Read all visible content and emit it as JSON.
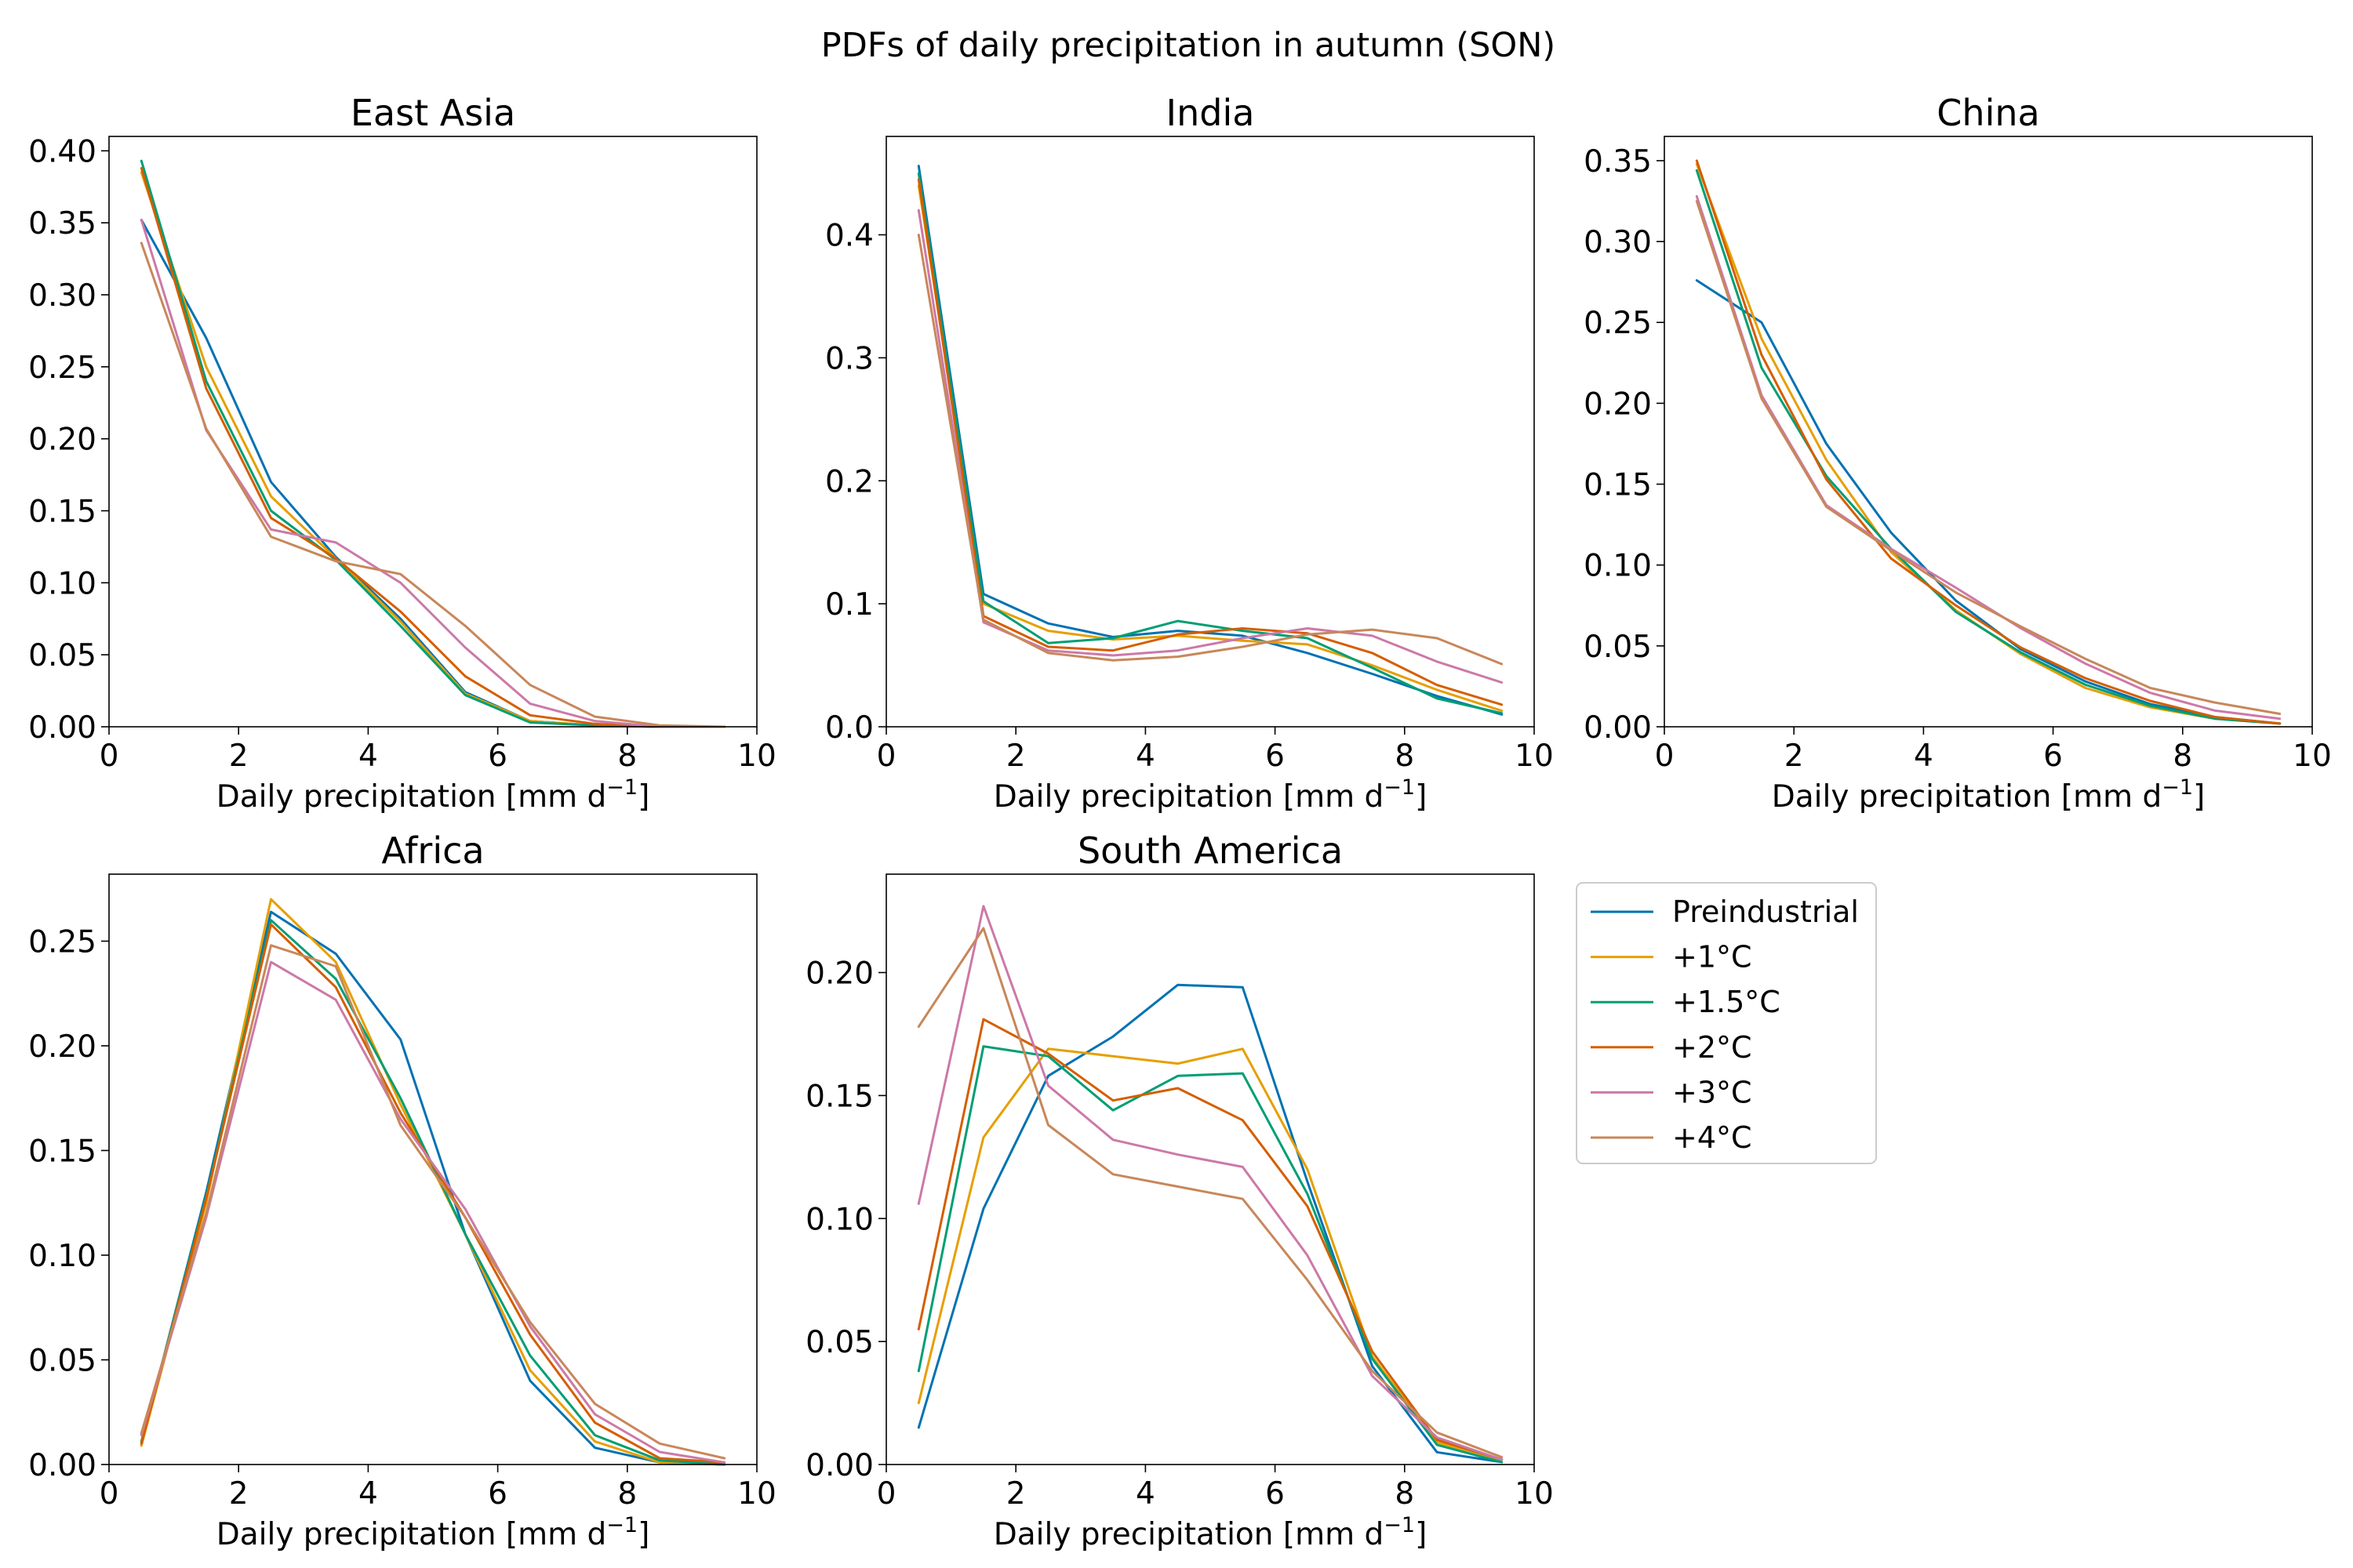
{
  "figure_title": "PDFs of daily precipitation in autumn (SON)",
  "colors": {
    "Preindustrial": "#0072b2",
    "+1°C": "#e69f00",
    "+1.5°C": "#009e73",
    "+2°C": "#d55e00",
    "+3°C": "#cc79a7",
    "+4°C": "#c8875a"
  },
  "legend": {
    "placement": "right of South America panel",
    "entries": [
      "Preindustrial",
      "+1°C",
      "+1.5°C",
      "+2°C",
      "+3°C",
      "+4°C"
    ]
  },
  "chart_data": [
    {
      "type": "line",
      "title": "East Asia",
      "xlabel": "Daily precipitation [mm d",
      "xlabel_sup": "−1",
      "xlabel_end": "]",
      "xlim": [
        0,
        10
      ],
      "ylim": [
        0,
        0.41
      ],
      "xticks": [
        0,
        2,
        4,
        6,
        8,
        10
      ],
      "yticks": [
        0,
        0.05,
        0.1,
        0.15,
        0.2,
        0.25,
        0.3,
        0.35,
        0.4
      ],
      "ytick_labels": [
        "0.00",
        "0.05",
        "0.10",
        "0.15",
        "0.20",
        "0.25",
        "0.30",
        "0.35",
        "0.40"
      ],
      "x": [
        0.5,
        1.5,
        2.5,
        3.5,
        4.5,
        5.5,
        6.5,
        7.5,
        8.5,
        9.5
      ],
      "series": [
        {
          "name": "Preindustrial",
          "values": [
            0.352,
            0.27,
            0.17,
            0.118,
            0.075,
            0.024,
            0.004,
            0.001,
            0.0,
            0.0
          ]
        },
        {
          "name": "+1°C",
          "values": [
            0.385,
            0.25,
            0.16,
            0.117,
            0.073,
            0.023,
            0.004,
            0.001,
            0.0,
            0.0
          ]
        },
        {
          "name": "+1.5°C",
          "values": [
            0.393,
            0.24,
            0.15,
            0.116,
            0.07,
            0.022,
            0.003,
            0.001,
            0.0,
            0.0
          ]
        },
        {
          "name": "+2°C",
          "values": [
            0.388,
            0.235,
            0.145,
            0.117,
            0.08,
            0.035,
            0.008,
            0.002,
            0.0,
            0.0
          ]
        },
        {
          "name": "+3°C",
          "values": [
            0.352,
            0.206,
            0.137,
            0.128,
            0.1,
            0.055,
            0.016,
            0.004,
            0.0,
            0.0
          ]
        },
        {
          "name": "+4°C",
          "values": [
            0.336,
            0.207,
            0.132,
            0.115,
            0.106,
            0.07,
            0.029,
            0.007,
            0.001,
            0.0
          ]
        }
      ]
    },
    {
      "type": "line",
      "title": "India",
      "xlabel": "Daily precipitation [mm d",
      "xlabel_sup": "−1",
      "xlabel_end": "]",
      "xlim": [
        0,
        10
      ],
      "ylim": [
        0,
        0.48
      ],
      "xticks": [
        0,
        2,
        4,
        6,
        8,
        10
      ],
      "yticks": [
        0,
        0.1,
        0.2,
        0.3,
        0.4
      ],
      "ytick_labels": [
        "0.0",
        "0.1",
        "0.2",
        "0.3",
        "0.4"
      ],
      "x": [
        0.5,
        1.5,
        2.5,
        3.5,
        4.5,
        5.5,
        6.5,
        7.5,
        8.5,
        9.5
      ],
      "series": [
        {
          "name": "Preindustrial",
          "values": [
            0.456,
            0.108,
            0.084,
            0.073,
            0.078,
            0.074,
            0.06,
            0.043,
            0.025,
            0.01
          ]
        },
        {
          "name": "+1°C",
          "values": [
            0.44,
            0.1,
            0.078,
            0.071,
            0.074,
            0.07,
            0.067,
            0.05,
            0.03,
            0.013
          ]
        },
        {
          "name": "+1.5°C",
          "values": [
            0.45,
            0.102,
            0.068,
            0.072,
            0.086,
            0.078,
            0.072,
            0.048,
            0.023,
            0.011
          ]
        },
        {
          "name": "+2°C",
          "values": [
            0.445,
            0.09,
            0.065,
            0.062,
            0.075,
            0.08,
            0.076,
            0.06,
            0.034,
            0.018
          ]
        },
        {
          "name": "+3°C",
          "values": [
            0.42,
            0.085,
            0.062,
            0.058,
            0.062,
            0.072,
            0.08,
            0.074,
            0.053,
            0.036
          ]
        },
        {
          "name": "+4°C",
          "values": [
            0.4,
            0.087,
            0.06,
            0.054,
            0.057,
            0.065,
            0.075,
            0.079,
            0.072,
            0.051
          ]
        }
      ]
    },
    {
      "type": "line",
      "title": "China",
      "xlabel": "Daily precipitation [mm d",
      "xlabel_sup": "−1",
      "xlabel_end": "]",
      "xlim": [
        0,
        10
      ],
      "ylim": [
        0,
        0.365
      ],
      "xticks": [
        0,
        2,
        4,
        6,
        8,
        10
      ],
      "yticks": [
        0,
        0.05,
        0.1,
        0.15,
        0.2,
        0.25,
        0.3,
        0.35
      ],
      "ytick_labels": [
        "0.00",
        "0.05",
        "0.10",
        "0.15",
        "0.20",
        "0.25",
        "0.30",
        "0.35"
      ],
      "x": [
        0.5,
        1.5,
        2.5,
        3.5,
        4.5,
        5.5,
        6.5,
        7.5,
        8.5,
        9.5
      ],
      "series": [
        {
          "name": "Preindustrial",
          "values": [
            0.276,
            0.25,
            0.175,
            0.12,
            0.078,
            0.048,
            0.028,
            0.014,
            0.006,
            0.002
          ]
        },
        {
          "name": "+1°C",
          "values": [
            0.348,
            0.24,
            0.165,
            0.108,
            0.072,
            0.045,
            0.024,
            0.012,
            0.005,
            0.002
          ]
        },
        {
          "name": "+1.5°C",
          "values": [
            0.344,
            0.222,
            0.155,
            0.11,
            0.071,
            0.046,
            0.026,
            0.013,
            0.005,
            0.002
          ]
        },
        {
          "name": "+2°C",
          "values": [
            0.35,
            0.23,
            0.153,
            0.104,
            0.075,
            0.049,
            0.03,
            0.016,
            0.006,
            0.002
          ]
        },
        {
          "name": "+3°C",
          "values": [
            0.328,
            0.205,
            0.137,
            0.11,
            0.086,
            0.061,
            0.039,
            0.021,
            0.01,
            0.005
          ]
        },
        {
          "name": "+4°C",
          "values": [
            0.325,
            0.203,
            0.136,
            0.109,
            0.083,
            0.062,
            0.042,
            0.024,
            0.015,
            0.008
          ]
        }
      ]
    },
    {
      "type": "line",
      "title": "Africa",
      "xlabel": "Daily precipitation [mm d",
      "xlabel_sup": "−1",
      "xlabel_end": "]",
      "xlim": [
        0,
        10
      ],
      "ylim": [
        0,
        0.282
      ],
      "xticks": [
        0,
        2,
        4,
        6,
        8,
        10
      ],
      "yticks": [
        0,
        0.05,
        0.1,
        0.15,
        0.2,
        0.25
      ],
      "ytick_labels": [
        "0.00",
        "0.05",
        "0.10",
        "0.15",
        "0.20",
        "0.25"
      ],
      "x": [
        0.5,
        1.5,
        2.5,
        3.5,
        4.5,
        5.5,
        6.5,
        7.5,
        8.5,
        9.5
      ],
      "series": [
        {
          "name": "Preindustrial",
          "values": [
            0.01,
            0.13,
            0.264,
            0.244,
            0.203,
            0.11,
            0.04,
            0.008,
            0.001,
            0.0
          ]
        },
        {
          "name": "+1°C",
          "values": [
            0.009,
            0.125,
            0.27,
            0.24,
            0.172,
            0.11,
            0.045,
            0.011,
            0.001,
            0.0
          ]
        },
        {
          "name": "+1.5°C",
          "values": [
            0.011,
            0.128,
            0.26,
            0.232,
            0.175,
            0.11,
            0.052,
            0.014,
            0.002,
            0.0
          ]
        },
        {
          "name": "+2°C",
          "values": [
            0.01,
            0.127,
            0.258,
            0.228,
            0.168,
            0.118,
            0.062,
            0.02,
            0.003,
            0.001
          ]
        },
        {
          "name": "+3°C",
          "values": [
            0.014,
            0.118,
            0.24,
            0.222,
            0.165,
            0.122,
            0.066,
            0.024,
            0.006,
            0.001
          ]
        },
        {
          "name": "+4°C",
          "values": [
            0.015,
            0.12,
            0.248,
            0.238,
            0.162,
            0.118,
            0.068,
            0.029,
            0.01,
            0.003
          ]
        }
      ]
    },
    {
      "type": "line",
      "title": "South America",
      "xlabel": "Daily precipitation [mm d",
      "xlabel_sup": "−1",
      "xlabel_end": "]",
      "xlim": [
        0,
        10
      ],
      "ylim": [
        0,
        0.24
      ],
      "xticks": [
        0,
        2,
        4,
        6,
        8,
        10
      ],
      "yticks": [
        0,
        0.05,
        0.1,
        0.15,
        0.2
      ],
      "ytick_labels": [
        "0.00",
        "0.05",
        "0.10",
        "0.15",
        "0.20"
      ],
      "x": [
        0.5,
        1.5,
        2.5,
        3.5,
        4.5,
        5.5,
        6.5,
        7.5,
        8.5,
        9.5
      ],
      "series": [
        {
          "name": "Preindustrial",
          "values": [
            0.015,
            0.104,
            0.158,
            0.174,
            0.195,
            0.194,
            0.115,
            0.04,
            0.005,
            0.001
          ]
        },
        {
          "name": "+1°C",
          "values": [
            0.025,
            0.133,
            0.169,
            0.166,
            0.163,
            0.169,
            0.12,
            0.044,
            0.009,
            0.002
          ]
        },
        {
          "name": "+1.5°C",
          "values": [
            0.038,
            0.17,
            0.166,
            0.144,
            0.158,
            0.159,
            0.11,
            0.043,
            0.008,
            0.001
          ]
        },
        {
          "name": "+2°C",
          "values": [
            0.055,
            0.181,
            0.167,
            0.148,
            0.153,
            0.14,
            0.105,
            0.046,
            0.01,
            0.002
          ]
        },
        {
          "name": "+3°C",
          "values": [
            0.106,
            0.227,
            0.154,
            0.132,
            0.126,
            0.121,
            0.085,
            0.036,
            0.011,
            0.002
          ]
        },
        {
          "name": "+4°C",
          "values": [
            0.178,
            0.218,
            0.138,
            0.118,
            0.113,
            0.108,
            0.075,
            0.038,
            0.013,
            0.003
          ]
        }
      ]
    }
  ]
}
